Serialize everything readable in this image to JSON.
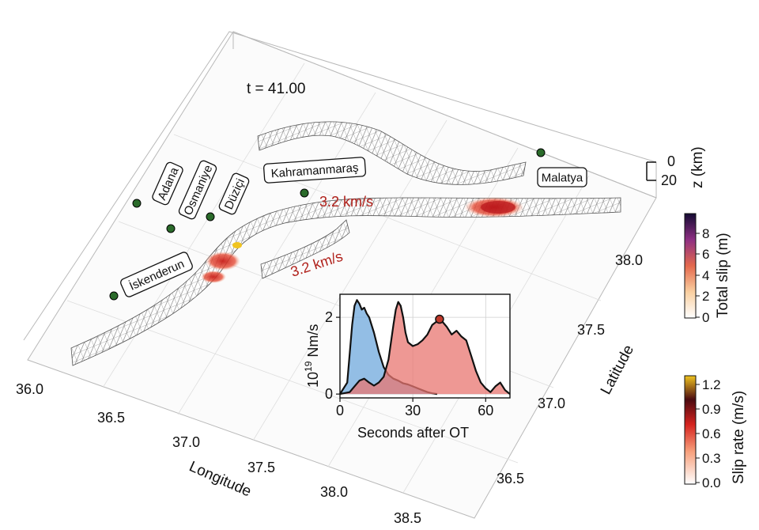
{
  "time_label": "t = 41.00",
  "speed_labels": [
    "3.2 km/s",
    "3.2 km/s"
  ],
  "cities": [
    {
      "name": "Adana"
    },
    {
      "name": "Osmaniye"
    },
    {
      "name": "Düziçi"
    },
    {
      "name": "Kahramanmaraş"
    },
    {
      "name": "İskenderun"
    },
    {
      "name": "Malatya"
    }
  ],
  "axes": {
    "x_title": "Longitude",
    "y_title": "Latitude",
    "z_title": "z (km)",
    "x_ticks": [
      "36.0",
      "36.5",
      "37.0",
      "37.5",
      "38.0",
      "38.5"
    ],
    "y_ticks": [
      "36.5",
      "37.0",
      "37.5",
      "38.0"
    ],
    "z_ticks": [
      "0",
      "20"
    ]
  },
  "colorbars": {
    "total_slip": {
      "title": "Total slip (m)",
      "ticks": [
        "0",
        "2",
        "4",
        "6",
        "8"
      ]
    },
    "slip_rate": {
      "title": "Slip rate (m/s)",
      "ticks": [
        "0.0",
        "0.3",
        "0.6",
        "0.9",
        "1.2"
      ]
    }
  },
  "chart_data": {
    "type": "area",
    "title": "",
    "xlabel": "Seconds after OT",
    "ylabel": "10^19 Nm/s",
    "ylabel_base": "10",
    "ylabel_exp": "19",
    "ylabel_unit": " Nm/s",
    "xlim": [
      0,
      70
    ],
    "ylim": [
      -0.1,
      2.6
    ],
    "xticks": [
      "0",
      "30",
      "60"
    ],
    "yticks": [
      "0",
      "2"
    ],
    "grid": true,
    "marker": {
      "x": 41,
      "y": 1.95
    },
    "series": [
      {
        "color": "#6fa8dc",
        "x": [
          0,
          3,
          5,
          6,
          7,
          8,
          9,
          10,
          11,
          12,
          14,
          16,
          18,
          20,
          22,
          24,
          26,
          28,
          30,
          32,
          34,
          36,
          38,
          40
        ],
        "values": [
          0,
          0.3,
          1.8,
          2.3,
          2.45,
          2.35,
          2.2,
          2.25,
          2.1,
          2.0,
          1.6,
          1.1,
          0.7,
          0.5,
          0.4,
          0.35,
          0.28,
          0.25,
          0.2,
          0.15,
          0.1,
          0.05,
          0.02,
          0
        ]
      },
      {
        "color": "#e87570",
        "x": [
          0,
          4,
          6,
          8,
          10,
          12,
          14,
          16,
          18,
          20,
          22,
          23,
          24,
          25,
          26,
          27,
          28,
          30,
          32,
          34,
          36,
          38,
          40,
          41,
          42,
          44,
          46,
          48,
          50,
          52,
          54,
          56,
          58,
          60,
          62,
          64,
          66,
          68,
          70
        ],
        "values": [
          0,
          0.05,
          0.2,
          0.35,
          0.4,
          0.3,
          0.22,
          0.3,
          0.45,
          0.9,
          1.8,
          2.2,
          2.4,
          2.3,
          2.0,
          1.6,
          1.35,
          1.25,
          1.3,
          1.4,
          1.55,
          1.8,
          1.9,
          1.95,
          1.9,
          1.75,
          1.55,
          1.65,
          1.5,
          1.4,
          1.0,
          0.6,
          0.3,
          0.15,
          0.05,
          0.2,
          0.3,
          0.1,
          0
        ]
      }
    ]
  }
}
